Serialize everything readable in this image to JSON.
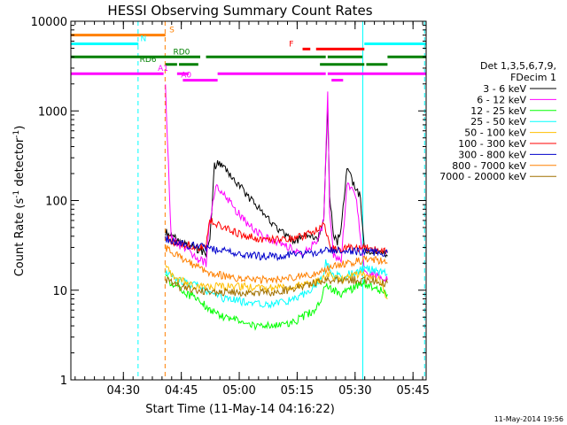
{
  "chart_data": {
    "type": "line",
    "title": "HESSI Observing Summary Count Rates",
    "xlabel": "Start Time (11-May-14 04:16:22)",
    "ylabel_main": "Count Rate (s",
    "ylabel_sup1": "-1",
    "ylabel_mid": " detector",
    "ylabel_sup2": "-1",
    "ylabel_end": ")",
    "yscale": "log",
    "ylim": [
      1,
      10000
    ],
    "xlim_minutes": [
      0,
      92
    ],
    "x_tick_labels": [
      "04:30",
      "04:45",
      "05:00",
      "05:15",
      "05:30",
      "05:45"
    ],
    "x_tick_minutes": [
      13.6,
      28.6,
      43.6,
      58.6,
      73.6,
      88.6
    ],
    "y_tick_labels": [
      "1",
      "10",
      "100",
      "1000",
      "10000"
    ],
    "y_tick_values": [
      1,
      10,
      100,
      1000,
      10000
    ],
    "legend": {
      "placement": "right",
      "header1": "Det 1,3,5,6,7,9,",
      "header2": "FDecim 1",
      "entries": [
        {
          "label": "3 - 6 keV",
          "color": "#000000"
        },
        {
          "label": "6 - 12 keV",
          "color": "#ff00ff"
        },
        {
          "label": "12 - 25 keV",
          "color": "#00ff00"
        },
        {
          "label": "25 - 50 keV",
          "color": "#00ffff"
        },
        {
          "label": "50 - 100 keV",
          "color": "#ffbf00"
        },
        {
          "label": "100 - 300 keV",
          "color": "#ff0000"
        },
        {
          "label": "300 - 800 keV",
          "color": "#0000cc"
        },
        {
          "label": "800 - 7000 keV",
          "color": "#ff8000"
        },
        {
          "label": "7000 - 20000 keV",
          "color": "#a07000"
        }
      ]
    },
    "flags": [
      {
        "label": "S",
        "color": "#ff8000",
        "y": 7000,
        "segments": [
          [
            0,
            24.5
          ]
        ],
        "label_at": 25.5
      },
      {
        "label": "N",
        "color": "#00ffff",
        "y": 5600,
        "segments": [
          [
            0,
            17.5
          ],
          [
            76,
            92
          ]
        ],
        "label_at": 18.0
      },
      {
        "label": "F",
        "color": "#ff0000",
        "y": 4900,
        "segments": [
          [
            60,
            62
          ],
          [
            63.5,
            76
          ]
        ],
        "label_at": 56.5
      },
      {
        "label": "RD0",
        "color": "#008000",
        "y": 4000,
        "segments": [
          [
            0,
            33.5
          ],
          [
            35,
            66
          ],
          [
            66.5,
            75.5
          ],
          [
            82,
            92
          ]
        ],
        "label_at": 26.5
      },
      {
        "label": "RD6",
        "color": "#008000",
        "y": 3300,
        "segments": [
          [
            24.5,
            27.5
          ],
          [
            28,
            33
          ],
          [
            64.5,
            76
          ],
          [
            76.5,
            82
          ]
        ],
        "label_at": 17.8
      },
      {
        "label": "A1",
        "color": "#ff00ff",
        "y": 2600,
        "segments": [
          [
            0,
            24
          ],
          [
            27.5,
            30.5
          ],
          [
            38,
            66
          ],
          [
            66.5,
            92
          ]
        ],
        "label_at": 22.5
      },
      {
        "label": "A0",
        "color": "#ff00ff",
        "y": 2200,
        "segments": [
          [
            29,
            38
          ],
          [
            67.5,
            70.5
          ]
        ],
        "label_at": 28.5
      }
    ],
    "vertical_lines": [
      {
        "minute": 0,
        "color": "#00ffff",
        "style": "solid"
      },
      {
        "minute": 17.4,
        "color": "#00ffff",
        "style": "dashed"
      },
      {
        "minute": 24.4,
        "color": "#ff8000",
        "style": "dashed"
      },
      {
        "minute": 75.6,
        "color": "#00ffff",
        "style": "solid"
      },
      {
        "minute": 91.6,
        "color": "#00ffff",
        "style": "dashed"
      }
    ],
    "series": [
      {
        "name": "3 - 6 keV",
        "color": "#000000",
        "x": [
          24.5,
          26,
          28,
          30,
          32,
          34,
          35,
          36,
          37.2,
          38,
          40,
          42,
          44,
          46,
          48,
          50,
          52,
          54,
          56,
          58,
          60,
          62,
          64,
          65.5,
          66.5,
          67,
          68,
          69,
          70,
          71.5,
          72,
          73,
          74,
          75,
          76,
          78,
          80,
          82
        ],
        "y": [
          45,
          40,
          36,
          33,
          30,
          27,
          25,
          38,
          240,
          260,
          220,
          170,
          140,
          110,
          90,
          70,
          55,
          45,
          40,
          35,
          38,
          42,
          38,
          60,
          1300,
          120,
          40,
          35,
          50,
          220,
          200,
          160,
          130,
          110,
          28,
          27,
          26,
          24
        ]
      },
      {
        "name": "6 - 12 keV",
        "color": "#ff00ff",
        "x": [
          24.5,
          26,
          28,
          30,
          32,
          34,
          35,
          36,
          37.5,
          39,
          41,
          43,
          45,
          47,
          50,
          53,
          55,
          58,
          60,
          62,
          64,
          65.5,
          66.5,
          67,
          68,
          70,
          71.5,
          72.5,
          74,
          76,
          78,
          80,
          82
        ],
        "y": [
          1800,
          38,
          32,
          28,
          24,
          21,
          20,
          60,
          150,
          120,
          100,
          75,
          60,
          50,
          40,
          35,
          32,
          28,
          25,
          30,
          35,
          60,
          1800,
          80,
          25,
          22,
          150,
          140,
          100,
          16,
          15,
          14,
          13
        ]
      },
      {
        "name": "12 - 25 keV",
        "color": "#00ff00",
        "x": [
          24.5,
          26,
          28,
          30,
          33,
          36,
          40,
          44,
          48,
          52,
          56,
          58,
          60,
          63,
          65,
          66,
          68,
          70,
          72,
          74,
          76,
          78,
          80,
          82
        ],
        "y": [
          14,
          12,
          11,
          9,
          8,
          6,
          5,
          4.5,
          4,
          4,
          4.2,
          4.5,
          5,
          6,
          8,
          12,
          10,
          9,
          10,
          11,
          12,
          11,
          10,
          9
        ]
      },
      {
        "name": "25 - 50 keV",
        "color": "#00ffff",
        "x": [
          24.5,
          26,
          28,
          30,
          33,
          36,
          40,
          44,
          48,
          52,
          56,
          60,
          63,
          65,
          66,
          68,
          70,
          72,
          74,
          76,
          78,
          80,
          82
        ],
        "y": [
          16,
          14,
          13,
          12,
          11,
          9,
          8,
          7.5,
          7,
          7,
          7.5,
          9,
          11,
          13,
          20,
          15,
          14,
          15,
          16,
          18,
          17,
          16,
          15
        ]
      },
      {
        "name": "50 - 100 keV",
        "color": "#ffbf00",
        "x": [
          24.5,
          26,
          28,
          30,
          33,
          36,
          40,
          44,
          48,
          52,
          56,
          60,
          63,
          65,
          66,
          68,
          70,
          72,
          74,
          76,
          78,
          80,
          82
        ],
        "y": [
          18,
          15,
          13,
          12,
          11,
          11,
          11,
          11,
          10.5,
          10.5,
          11,
          11.5,
          12,
          13,
          15,
          14,
          13,
          14,
          15,
          15,
          14,
          13,
          8
        ]
      },
      {
        "name": "100 - 300 keV",
        "color": "#ff0000",
        "x": [
          24.5,
          26,
          28,
          30,
          32,
          34,
          35,
          36,
          38,
          40,
          42,
          44,
          46,
          48,
          50,
          52,
          54,
          56,
          58,
          60,
          62,
          64,
          65.5,
          66,
          67,
          70,
          73,
          76,
          78,
          80,
          82
        ],
        "y": [
          40,
          35,
          33,
          32,
          31,
          30,
          30,
          60,
          55,
          50,
          45,
          42,
          40,
          38,
          37,
          37,
          36,
          37,
          38,
          40,
          43,
          47,
          52,
          45,
          30,
          28,
          30,
          30,
          29,
          28,
          27
        ]
      },
      {
        "name": "300 - 800 keV",
        "color": "#0000cc",
        "x": [
          24.5,
          26,
          28,
          30,
          32,
          34,
          36,
          38,
          40,
          42,
          44,
          46,
          48,
          50,
          52,
          54,
          56,
          58,
          60,
          62,
          64,
          66,
          68,
          70,
          72,
          74,
          76,
          78,
          80,
          82
        ],
        "y": [
          38,
          36,
          34,
          32,
          31,
          30,
          29,
          28,
          27,
          26,
          25,
          24.5,
          24,
          24,
          24,
          24,
          24.5,
          25,
          25,
          26,
          27,
          28,
          28,
          28,
          28,
          27,
          27,
          27,
          26,
          26
        ]
      },
      {
        "name": "800 - 7000 keV",
        "color": "#ff8000",
        "x": [
          24.5,
          26,
          28,
          30,
          32,
          34,
          36,
          38,
          40,
          42,
          44,
          46,
          48,
          50,
          52,
          54,
          56,
          58,
          60,
          62,
          64,
          66,
          68,
          70,
          72,
          74,
          76,
          78,
          80,
          82
        ],
        "y": [
          30,
          27,
          24,
          21,
          19,
          17,
          16,
          15,
          14.5,
          14,
          13.5,
          13,
          13,
          13,
          13,
          13,
          13.5,
          14,
          14.5,
          15,
          16,
          17,
          18,
          19,
          20,
          21,
          22,
          22,
          21,
          20
        ]
      },
      {
        "name": "7000 - 20000 keV",
        "color": "#a07000",
        "x": [
          24.5,
          26,
          28,
          30,
          32,
          34,
          36,
          38,
          40,
          42,
          44,
          46,
          48,
          50,
          52,
          54,
          56,
          58,
          60,
          62,
          64,
          66,
          68,
          70,
          72,
          74,
          76,
          78,
          80,
          82
        ],
        "y": [
          13,
          12,
          11,
          10.5,
          10,
          10,
          9.5,
          9.5,
          9.5,
          9.5,
          9.5,
          9.5,
          9.5,
          9.5,
          9.5,
          10,
          10,
          10.5,
          11,
          11.5,
          12,
          13,
          13,
          13,
          13,
          13,
          13,
          13,
          12,
          12
        ]
      }
    ]
  },
  "footer_timestamp": "11-May-2014 19:56"
}
